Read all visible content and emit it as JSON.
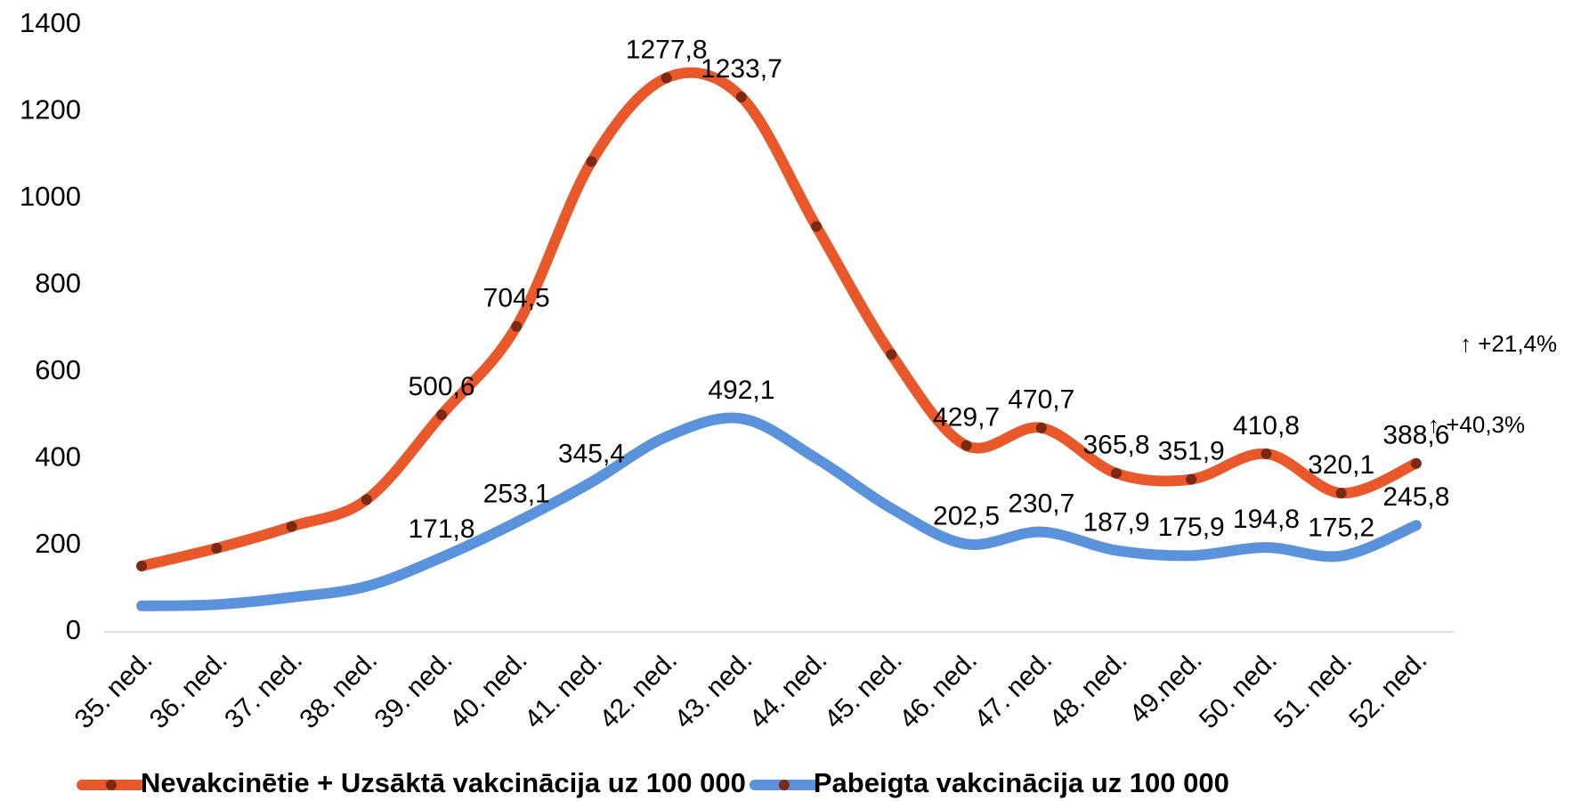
{
  "chart_data": {
    "type": "line",
    "categories": [
      "35. ned.",
      "36. ned.",
      "37. ned.",
      "38. ned.",
      "39. ned.",
      "40. ned.",
      "41. ned.",
      "42. ned.",
      "43. ned.",
      "44. ned.",
      "45. ned.",
      "46. ned.",
      "47. ned.",
      "48. ned.",
      "49.ned.",
      "50. ned.",
      "51. ned.",
      "52. ned."
    ],
    "series": [
      {
        "name": "Nevakcinētie +  Uzsāktā vakcinācija uz 100 000",
        "color": "#e8582a",
        "values": [
          152,
          193,
          243,
          305,
          500.6,
          704.5,
          1085,
          1277.8,
          1233.7,
          935,
          640,
          429.7,
          470.7,
          365.8,
          351.9,
          410.8,
          320.1,
          388.6
        ],
        "value_labels": [
          null,
          null,
          null,
          null,
          "500,6",
          "704,5",
          null,
          "1277,8",
          "1233,7",
          null,
          null,
          "429,7",
          "470,7",
          "365,8",
          "351,9",
          "410,8",
          "320,1",
          "388,6"
        ]
      },
      {
        "name": "Pabeigta vakcinācija uz 100 000",
        "color": "#5a92dc",
        "values": [
          60,
          63,
          80,
          105,
          171.8,
          253.1,
          345.4,
          450,
          492.1,
          400,
          285,
          202.5,
          230.7,
          187.9,
          175.9,
          194.8,
          175.2,
          245.8
        ],
        "value_labels": [
          null,
          null,
          null,
          null,
          "171,8",
          "253,1",
          "345,4",
          null,
          "492,1",
          null,
          null,
          "202,5",
          "230,7",
          "187,9",
          "175,9",
          "194,8",
          "175,2",
          "245,8"
        ]
      }
    ],
    "ylim": [
      0,
      1400
    ],
    "yticks": [
      0,
      200,
      400,
      600,
      800,
      1000,
      1200,
      1400
    ],
    "annotations": [
      "↑ +21,4%",
      "↑ +40,3%"
    ],
    "marker_color": "#7a2a14",
    "legend": "bottom"
  }
}
